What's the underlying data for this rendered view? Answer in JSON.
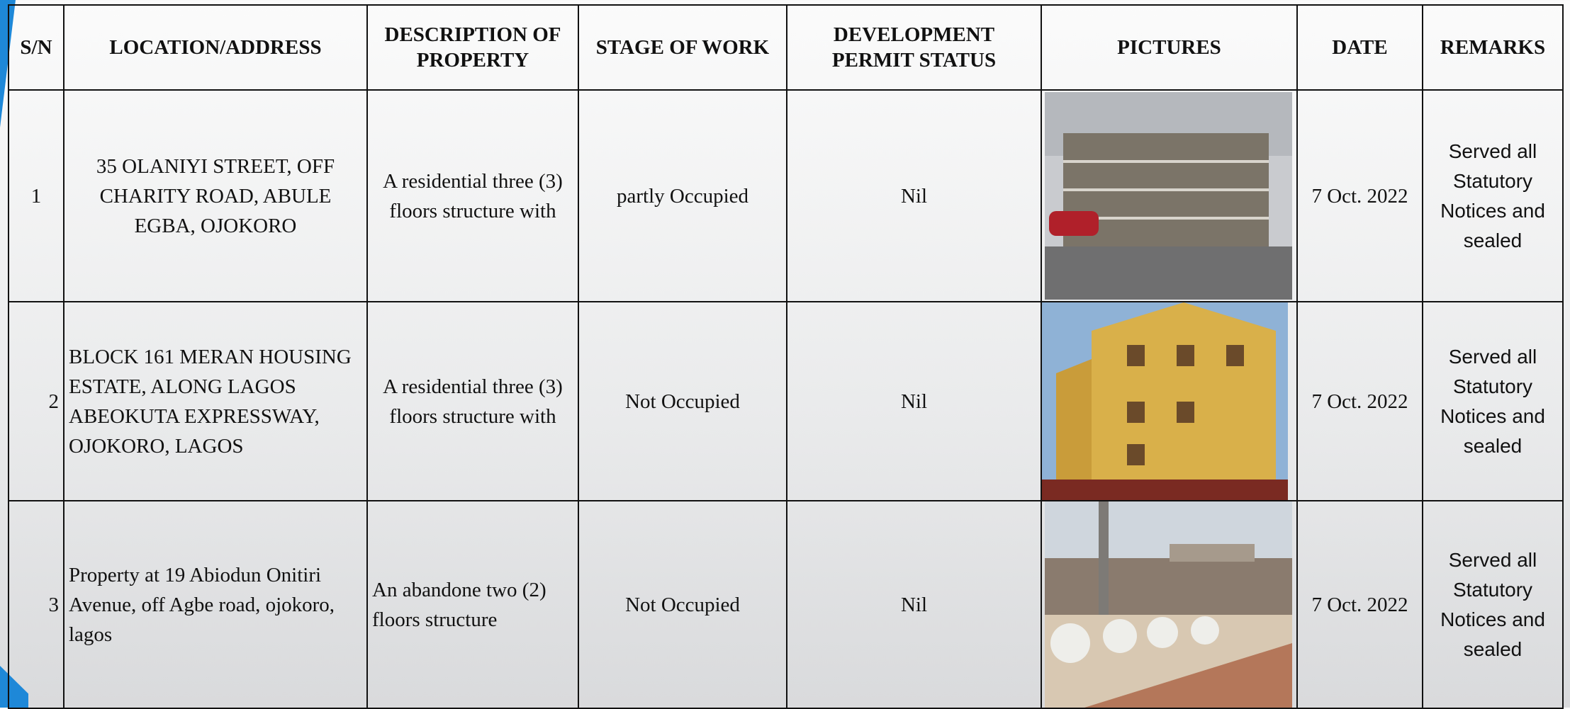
{
  "table": {
    "header": [
      "S/N",
      "LOCATION/ADDRESS",
      "DESCRIPTION OF PROPERTY",
      "STAGE OF WORK",
      "DEVELOPMENT PERMIT STATUS",
      "PICTURES",
      "DATE",
      "REMARKS"
    ],
    "rows": [
      {
        "sn": "1",
        "location": "35 OLANIYI STREET, OFF CHARITY ROAD, ABULE EGBA, OJOKORO",
        "description": "A residential three (3) floors structure with",
        "stage": "partly Occupied",
        "permit": "Nil",
        "date": "7 Oct. 2022",
        "remarks": "Served all Statutory Notices and sealed"
      },
      {
        "sn": "2",
        "location": "BLOCK 161 MERAN HOUSING ESTATE, ALONG LAGOS ABEOKUTA EXPRESSWAY, OJOKORO, LAGOS",
        "description": "A residential three (3) floors structure with",
        "stage": "Not Occupied",
        "permit": "Nil",
        "date": "7 Oct. 2022",
        "remarks": "Served all Statutory Notices and sealed"
      },
      {
        "sn": "3",
        "location": "Property at 19 Abiodun Onitiri Avenue, off Agbe road, ojokoro, lagos",
        "description": "An abandone two (2) floors structure",
        "stage": "Not Occupied",
        "permit": "Nil",
        "date": "7 Oct. 2022",
        "remarks": "Served all Statutory Notices and sealed"
      }
    ]
  }
}
